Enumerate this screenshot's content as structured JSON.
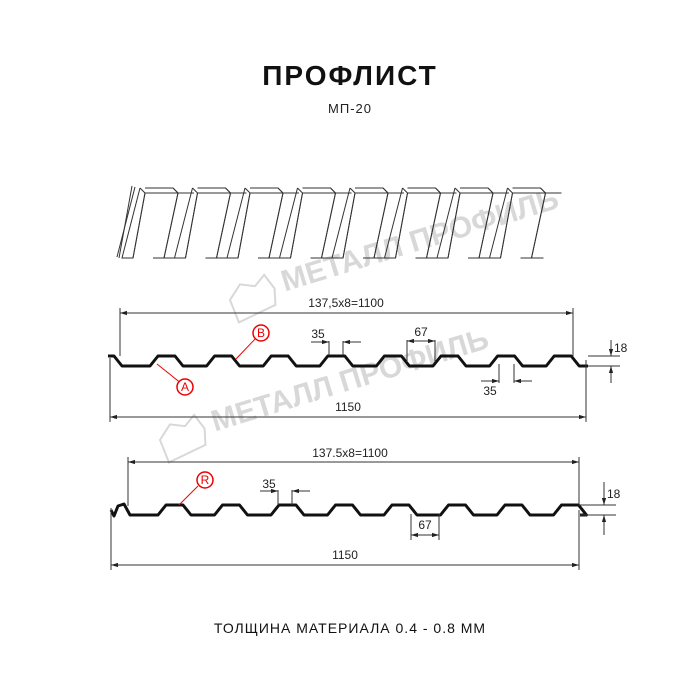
{
  "header": {
    "title": "ПРОФЛИСТ",
    "subtitle": "МП-20"
  },
  "watermark": {
    "text": "МЕТАЛЛ ПРОФИЛЬ",
    "color": "#cfcfcf"
  },
  "profile_1": {
    "pitch_label": "137,5x8=1100",
    "width_label": "1150",
    "top_rib_label": "35",
    "bottom_rib_label": "35",
    "gap_label": "67",
    "height_label": "18",
    "callout_a": "A",
    "callout_b": "B"
  },
  "profile_2": {
    "pitch_label": "137.5x8=1100",
    "width_label": "1150",
    "top_rib_label": "35",
    "gap_label": "67",
    "height_label": "18",
    "callout_r": "R"
  },
  "footer": {
    "thickness": "ТОЛЩИНА МАТЕРИАЛА 0.4 - 0.8 ММ"
  },
  "colors": {
    "profile": "#111111",
    "callout": "#e00000",
    "dimension": "#333333"
  }
}
